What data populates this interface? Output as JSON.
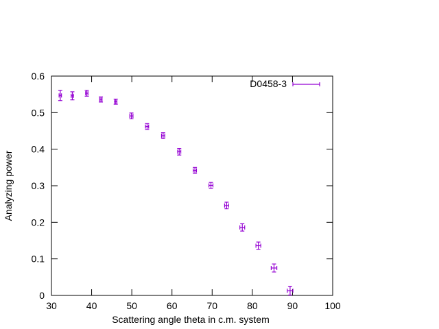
{
  "chart_data": {
    "type": "scatter",
    "title": "",
    "xlabel": "Scattering angle theta in c.m. system",
    "ylabel": "Analyzing power",
    "xlim": [
      30,
      100
    ],
    "ylim": [
      0,
      0.6
    ],
    "xticks": [
      30,
      40,
      50,
      60,
      70,
      80,
      90,
      100
    ],
    "yticks": [
      0,
      0.1,
      0.2,
      0.3,
      0.4,
      0.5,
      0.6
    ],
    "xtick_labels": [
      "30",
      "40",
      "50",
      "60",
      "70",
      "80",
      "90",
      "100"
    ],
    "ytick_labels": [
      "0",
      "0.1",
      "0.2",
      "0.3",
      "0.4",
      "0.5",
      "0.6"
    ],
    "grid": false,
    "legend_position": "top-right",
    "error_bars": "xy",
    "series": [
      {
        "name": "D0458-3",
        "color": "#9400d3",
        "points": [
          {
            "x": 32.2,
            "y": 0.547,
            "xerr": 0.3,
            "yerr": 0.014
          },
          {
            "x": 35.2,
            "y": 0.546,
            "xerr": 0.3,
            "yerr": 0.011
          },
          {
            "x": 38.8,
            "y": 0.553,
            "xerr": 0.3,
            "yerr": 0.008
          },
          {
            "x": 42.3,
            "y": 0.536,
            "xerr": 0.3,
            "yerr": 0.007
          },
          {
            "x": 46.0,
            "y": 0.53,
            "xerr": 0.3,
            "yerr": 0.007
          },
          {
            "x": 49.9,
            "y": 0.491,
            "xerr": 0.4,
            "yerr": 0.008
          },
          {
            "x": 53.8,
            "y": 0.462,
            "xerr": 0.4,
            "yerr": 0.008
          },
          {
            "x": 57.8,
            "y": 0.437,
            "xerr": 0.4,
            "yerr": 0.008
          },
          {
            "x": 61.8,
            "y": 0.393,
            "xerr": 0.4,
            "yerr": 0.009
          },
          {
            "x": 65.7,
            "y": 0.342,
            "xerr": 0.4,
            "yerr": 0.008
          },
          {
            "x": 69.7,
            "y": 0.301,
            "xerr": 0.5,
            "yerr": 0.008
          },
          {
            "x": 73.6,
            "y": 0.246,
            "xerr": 0.5,
            "yerr": 0.009
          },
          {
            "x": 77.5,
            "y": 0.186,
            "xerr": 0.6,
            "yerr": 0.01
          },
          {
            "x": 81.5,
            "y": 0.136,
            "xerr": 0.6,
            "yerr": 0.01
          },
          {
            "x": 85.4,
            "y": 0.075,
            "xerr": 0.7,
            "yerr": 0.011
          },
          {
            "x": 89.4,
            "y": 0.013,
            "xerr": 0.7,
            "yerr": 0.012
          }
        ]
      }
    ]
  }
}
